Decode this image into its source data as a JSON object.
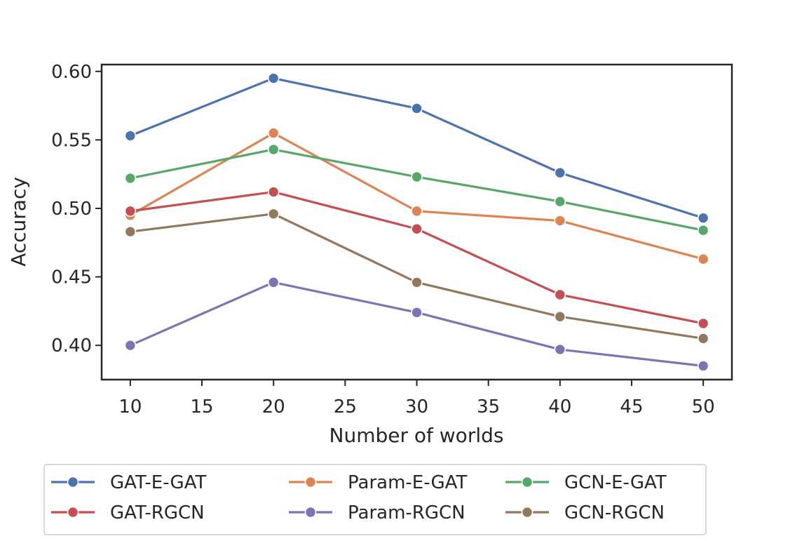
{
  "chart_data": {
    "type": "line",
    "title": "",
    "xlabel": "Number of worlds",
    "ylabel": "Accuracy",
    "x": [
      10,
      20,
      30,
      40,
      50
    ],
    "xlim": [
      8,
      52
    ],
    "ylim": [
      0.375,
      0.605
    ],
    "xticks": [
      10,
      15,
      20,
      25,
      30,
      35,
      40,
      45,
      50
    ],
    "xtick_labels": [
      "10",
      "15",
      "20",
      "25",
      "30",
      "35",
      "40",
      "45",
      "50"
    ],
    "yticks": [
      0.4,
      0.45,
      0.5,
      0.55,
      0.6
    ],
    "ytick_labels": [
      "0.40",
      "0.45",
      "0.50",
      "0.55",
      "0.60"
    ],
    "grid": false,
    "legend_placement": "below",
    "series": [
      {
        "name": "GAT-E-GAT",
        "color": "#4c72b0",
        "values": [
          0.553,
          0.595,
          0.573,
          0.526,
          0.493
        ]
      },
      {
        "name": "Param-E-GAT",
        "color": "#dd8452",
        "values": [
          0.495,
          0.555,
          0.498,
          0.491,
          0.463
        ]
      },
      {
        "name": "GCN-E-GAT",
        "color": "#55a868",
        "values": [
          0.522,
          0.543,
          0.523,
          0.505,
          0.484
        ]
      },
      {
        "name": "GAT-RGCN",
        "color": "#c44e52",
        "values": [
          0.498,
          0.512,
          0.485,
          0.437,
          0.416
        ]
      },
      {
        "name": "Param-RGCN",
        "color": "#8172b3",
        "values": [
          0.4,
          0.446,
          0.424,
          0.397,
          0.385
        ]
      },
      {
        "name": "GCN-RGCN",
        "color": "#937860",
        "values": [
          0.483,
          0.496,
          0.446,
          0.421,
          0.405
        ]
      }
    ]
  }
}
